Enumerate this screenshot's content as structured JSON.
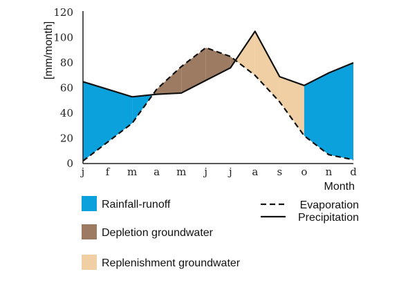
{
  "chart_data": {
    "type": "line",
    "title": "",
    "xlabel": "Month",
    "ylabel": "[mm/month]",
    "categories": [
      "j",
      "f",
      "m",
      "a",
      "m",
      "j",
      "j",
      "a",
      "s",
      "o",
      "n",
      "d"
    ],
    "ylim": [
      0,
      120
    ],
    "yticks": [
      0,
      20,
      40,
      60,
      80,
      100,
      120
    ],
    "grid": false,
    "legend_position": "bottom",
    "series": [
      {
        "name": "Precipitation",
        "style": "solid",
        "color": "#111111",
        "values": [
          65,
          59,
          53,
          55,
          56,
          66,
          76,
          105,
          69,
          62,
          72,
          80
        ]
      },
      {
        "name": "Evaporation",
        "style": "dashed",
        "color": "#111111",
        "values": [
          2,
          17,
          32,
          59,
          77,
          92,
          85,
          70,
          49,
          22,
          7,
          3
        ]
      }
    ],
    "shaded_areas": [
      {
        "name": "Rainfall-runoff",
        "color": "#0aa1dd"
      },
      {
        "name": "Depletion groundwater",
        "color": "#9d7b62"
      },
      {
        "name": "Replenishment groundwater",
        "color": "#f0cfa5"
      }
    ]
  }
}
